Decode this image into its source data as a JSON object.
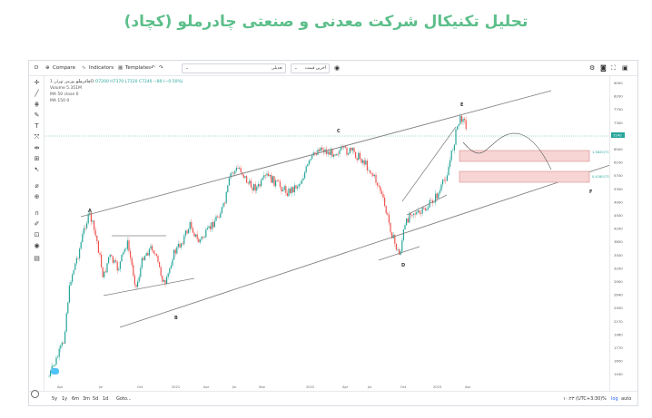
{
  "title": "تحلیل تکنیکال شرکت معدنی و صنعتی چادرملو (کچاد)",
  "toolbar": {
    "symbol_letter": "D",
    "compare_label": "Compare",
    "indicators_label": "Indicators",
    "templates_label": "Templates",
    "dropdown_1": "تعدیلی",
    "dropdown_2": "آخرین قیمت"
  },
  "legend": {
    "symbol": "چادرملو",
    "exchange": "بورس تهران",
    "interval": "1D",
    "ohlc": "O7200 H7370 L7120 C7240 −80 (−0.50%)",
    "indicators": [
      "Volume 5.351M",
      "MA 50 close 0",
      "MA 150 0"
    ]
  },
  "wave_labels": [
    "A",
    "B",
    "C",
    "D",
    "E",
    "F"
  ],
  "level_labels": [
    "1.3820(71)",
    "0.4180(73)"
  ],
  "price_axis": [
    "9000",
    "8200",
    "7750",
    "7300",
    "6900",
    "6500",
    "6100",
    "5700",
    "5300",
    "4900",
    "4500",
    "4200",
    "3850",
    "3500",
    "3200",
    "2900",
    "2640",
    "2400",
    "2170",
    "1960",
    "1770",
    "1600",
    "1440"
  ],
  "current_price": "7240",
  "time_axis": [
    "Apr",
    "Jul",
    "Oct",
    "2021",
    "Apr",
    "Jul",
    "Sep",
    "2022",
    "Apr",
    "Jul",
    "Oct",
    "2023",
    "Apr"
  ],
  "bottombar": {
    "ranges": [
      "5y",
      "1y",
      "6m",
      "3m",
      "5d",
      "1d"
    ],
    "goto": "Goto...",
    "clock": "۱۰:۲۳ (UTC+3:30)",
    "percent": "%",
    "log": "log",
    "auto": "auto"
  },
  "colors": {
    "title": "#5cbf8a",
    "candle_up": "#26a69a",
    "candle_down": "#ef5350",
    "trendline": "#808080",
    "zone_fill": "#f7d5d5",
    "zone_border": "#d88a8a",
    "price_badge": "#26a69a"
  },
  "chart_data": {
    "type": "candlestick",
    "x": [
      "2020-04",
      "2020-07",
      "2020-10",
      "2021-01",
      "2021-04",
      "2021-07",
      "2021-09",
      "2022-01",
      "2022-04",
      "2022-07",
      "2022-10",
      "2023-01",
      "2023-04"
    ],
    "close_approx": [
      1500,
      4500,
      3300,
      3500,
      4500,
      5400,
      5500,
      6200,
      6900,
      6400,
      3700,
      4900,
      7240
    ],
    "waves": [
      {
        "label": "A",
        "x": "2020-07",
        "price": 4700
      },
      {
        "label": "B",
        "x": "2021-01",
        "price": 2300
      },
      {
        "label": "C",
        "x": "2022-03",
        "price": 7100
      },
      {
        "label": "D",
        "x": "2022-11",
        "price": 3400
      },
      {
        "label": "E",
        "x": "2023-04",
        "price": 8400
      },
      {
        "label": "F",
        "x": "2023-07",
        "price": 4800
      }
    ],
    "zones": [
      {
        "label": "1.3820(71)",
        "low": 5900,
        "high": 6300
      },
      {
        "label": "0.4180(73)",
        "low": 4900,
        "high": 5300
      }
    ]
  }
}
